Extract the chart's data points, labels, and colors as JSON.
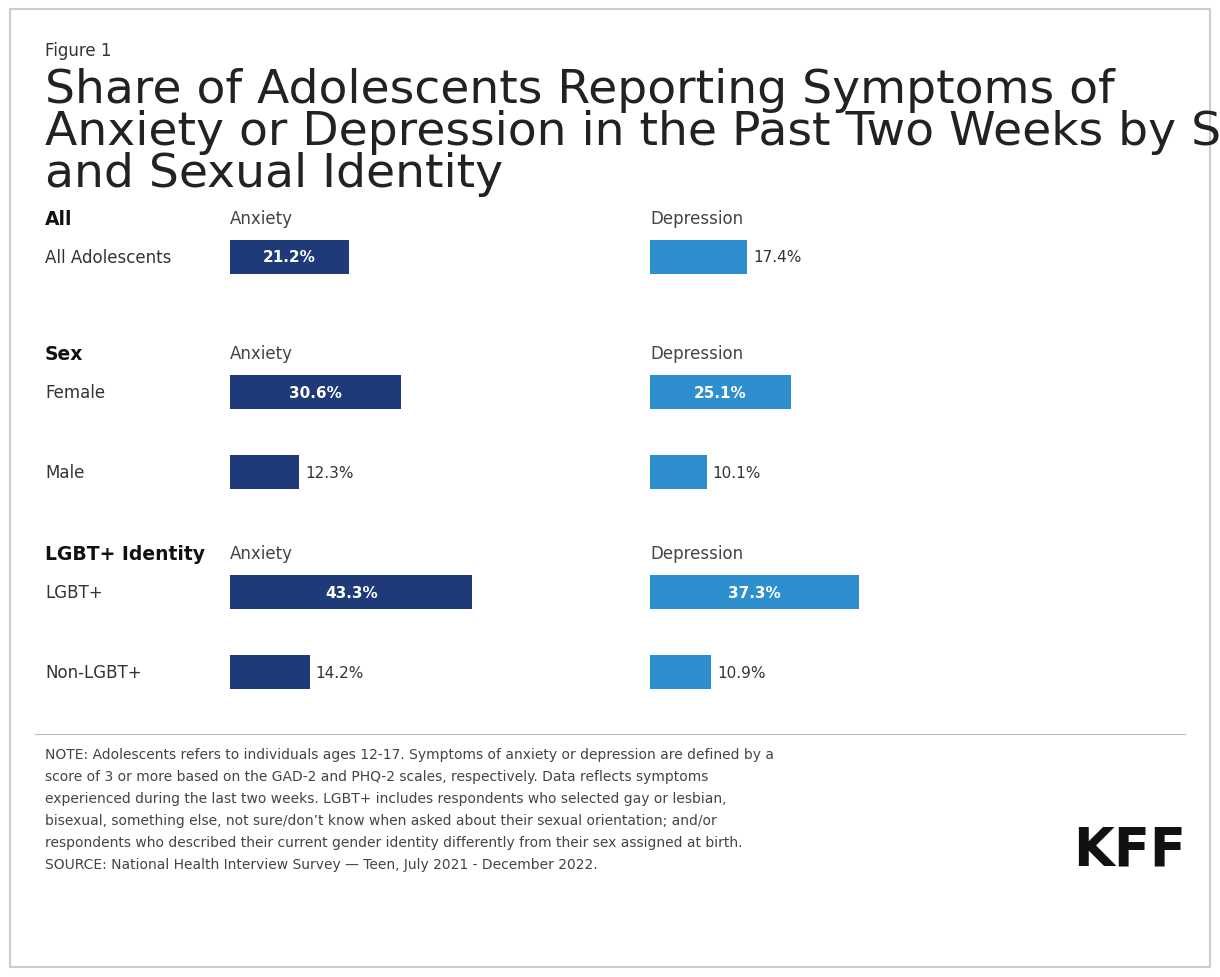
{
  "figure_label": "Figure 1",
  "title_line1": "Share of Adolescents Reporting Symptoms of",
  "title_line2": "Anxiety or Depression in the Past Two Weeks by Sex",
  "title_line3": "and Sexual Identity",
  "background_color": "#ffffff",
  "sections": [
    {
      "group_label": "All",
      "col_label_anxiety": "Anxiety",
      "col_label_depression": "Depression",
      "rows": [
        {
          "label": "All Adolescents",
          "anxiety_val": 21.2,
          "depression_val": 17.4,
          "anxiety_label_inside": true,
          "depression_label_inside": false
        }
      ]
    },
    {
      "group_label": "Sex",
      "col_label_anxiety": "Anxiety",
      "col_label_depression": "Depression",
      "rows": [
        {
          "label": "Female",
          "anxiety_val": 30.6,
          "depression_val": 25.1,
          "anxiety_label_inside": true,
          "depression_label_inside": true
        },
        {
          "label": "Male",
          "anxiety_val": 12.3,
          "depression_val": 10.1,
          "anxiety_label_inside": false,
          "depression_label_inside": false
        }
      ]
    },
    {
      "group_label": "LGBT+ Identity",
      "col_label_anxiety": "Anxiety",
      "col_label_depression": "Depression",
      "rows": [
        {
          "label": "LGBT+",
          "anxiety_val": 43.3,
          "depression_val": 37.3,
          "anxiety_label_inside": true,
          "depression_label_inside": true
        },
        {
          "label": "Non-LGBT+",
          "anxiety_val": 14.2,
          "depression_val": 10.9,
          "anxiety_label_inside": false,
          "depression_label_inside": false
        }
      ]
    }
  ],
  "anxiety_color": "#1e3a78",
  "depression_color": "#2e8fcf",
  "note_line1": "NOTE: Adolescents refers to individuals ages 12-17. Symptoms of anxiety or depression are defined by a",
  "note_line2": "score of 3 or more based on the GAD-2 and PHQ-2 scales, respectively. Data reflects symptoms",
  "note_line3": "experienced during the last two weeks. LGBT+ includes respondents who selected gay or lesbian,",
  "note_line4": "bisexual, something else, not sure/don’t know when asked about their sexual orientation; and/or",
  "note_line5": "respondents who described their current gender identity differently from their sex assigned at birth.",
  "note_line6": "SOURCE: National Health Interview Survey — Teen, July 2021 - December 2022.",
  "kff_text": "KFF"
}
